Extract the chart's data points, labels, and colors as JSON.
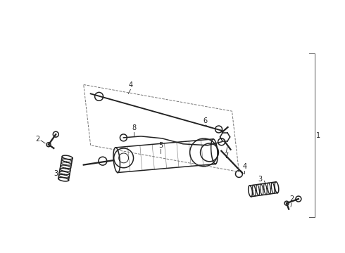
{
  "bg_color": "#ffffff",
  "line_color": "#2a2a2a",
  "figsize": [
    4.9,
    3.6
  ],
  "dpi": 100,
  "labels": {
    "tie_rod_end_L_num": "2",
    "boot_L_num": "3",
    "inner_rod_num": "4",
    "rack_num": "5",
    "outer_rod_num": "6",
    "fitting_num": "7",
    "arm_num": "8",
    "boot_R_num": "3",
    "tie_rod_end_R_num": "2",
    "inner_rod_R_num": "4",
    "assembly_num": "1"
  },
  "colors": {
    "part": "#222222",
    "label": "#222222",
    "bracket": "#555555",
    "dashed_box": "#555555"
  }
}
